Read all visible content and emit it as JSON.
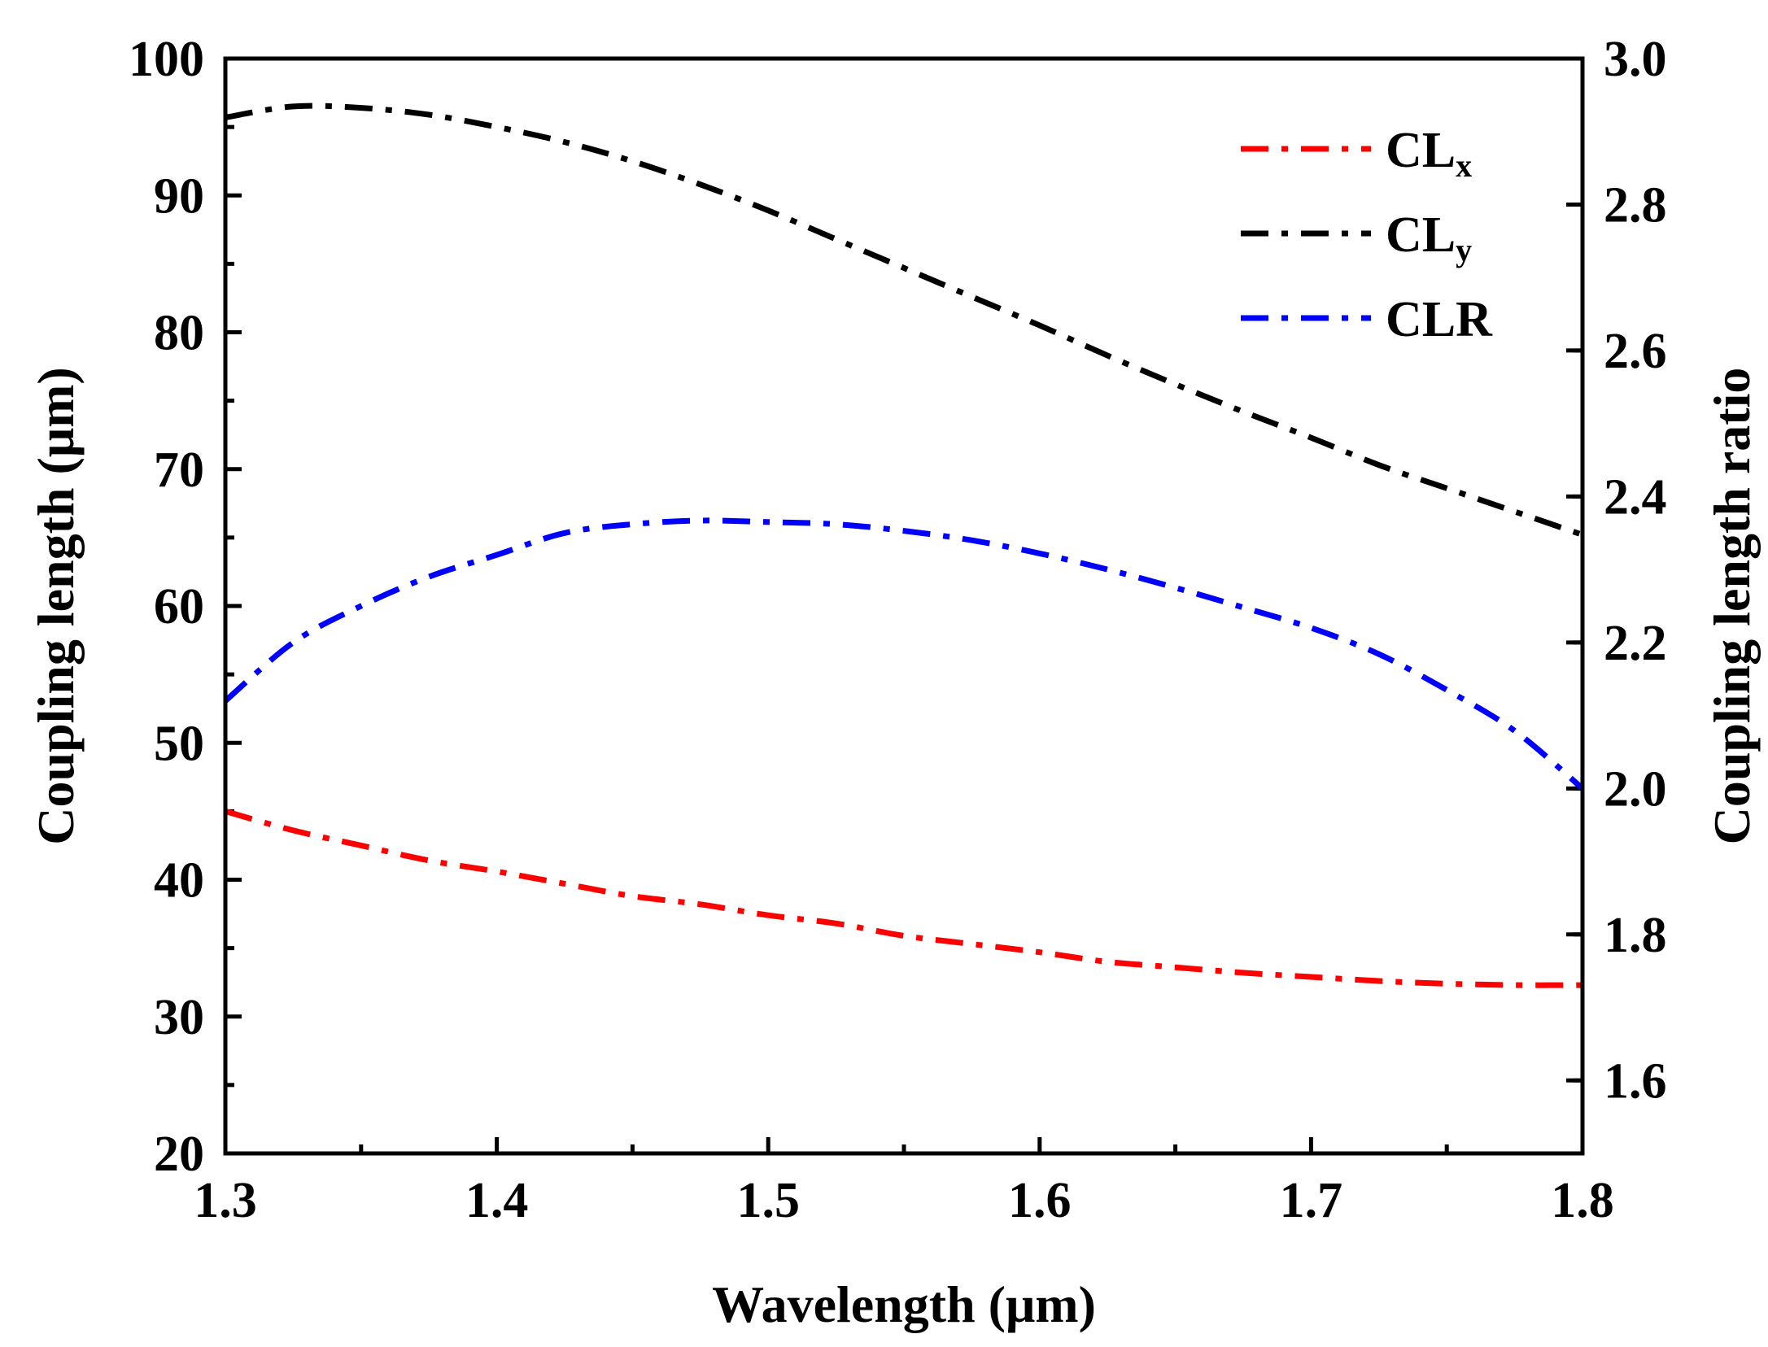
{
  "chart_data": {
    "type": "line",
    "title": "",
    "xlabel": "Wavelength (μm)",
    "ylabel": "Coupling length (μm)",
    "y2label": "Coupling length ratio",
    "xlim": [
      1.3,
      1.8
    ],
    "ylim": [
      20,
      100
    ],
    "y2lim": [
      1.5,
      3.0
    ],
    "x_ticks": [
      "1.3",
      "1.4",
      "1.5",
      "1.6",
      "1.7",
      "1.8"
    ],
    "y_ticks": [
      "20",
      "30",
      "40",
      "50",
      "60",
      "70",
      "80",
      "90",
      "100"
    ],
    "y2_ticks": [
      "1.6",
      "1.8",
      "2.0",
      "2.2",
      "2.4",
      "2.6",
      "2.8",
      "3.0"
    ],
    "grid": false,
    "legend_position": "top-right",
    "x": [
      1.3,
      1.325,
      1.35,
      1.375,
      1.4,
      1.425,
      1.45,
      1.475,
      1.5,
      1.525,
      1.55,
      1.575,
      1.6,
      1.625,
      1.65,
      1.675,
      1.7,
      1.725,
      1.75,
      1.775,
      1.8
    ],
    "series": [
      {
        "name": "CL",
        "sub": "x",
        "axis": "left",
        "color": "#ff0000",
        "values": [
          45.0,
          43.6,
          42.5,
          41.4,
          40.6,
          39.7,
          38.8,
          38.2,
          37.4,
          36.8,
          35.9,
          35.3,
          34.7,
          34.0,
          33.6,
          33.2,
          32.9,
          32.6,
          32.4,
          32.3,
          32.3
        ]
      },
      {
        "name": "CL",
        "sub": "y",
        "axis": "left",
        "color": "#000000",
        "values": [
          95.7,
          96.5,
          96.4,
          95.9,
          95.0,
          93.9,
          92.5,
          90.8,
          88.9,
          86.8,
          84.7,
          82.6,
          80.5,
          78.3,
          76.2,
          74.2,
          72.3,
          70.3,
          68.6,
          66.9,
          65.2
        ]
      },
      {
        "name": "CLR",
        "sub": "",
        "axis": "right",
        "color": "#0000ff",
        "values": [
          2.12,
          2.2,
          2.25,
          2.29,
          2.32,
          2.35,
          2.362,
          2.367,
          2.365,
          2.362,
          2.353,
          2.34,
          2.322,
          2.3,
          2.275,
          2.248,
          2.22,
          2.184,
          2.135,
          2.079,
          2.0
        ]
      }
    ]
  }
}
